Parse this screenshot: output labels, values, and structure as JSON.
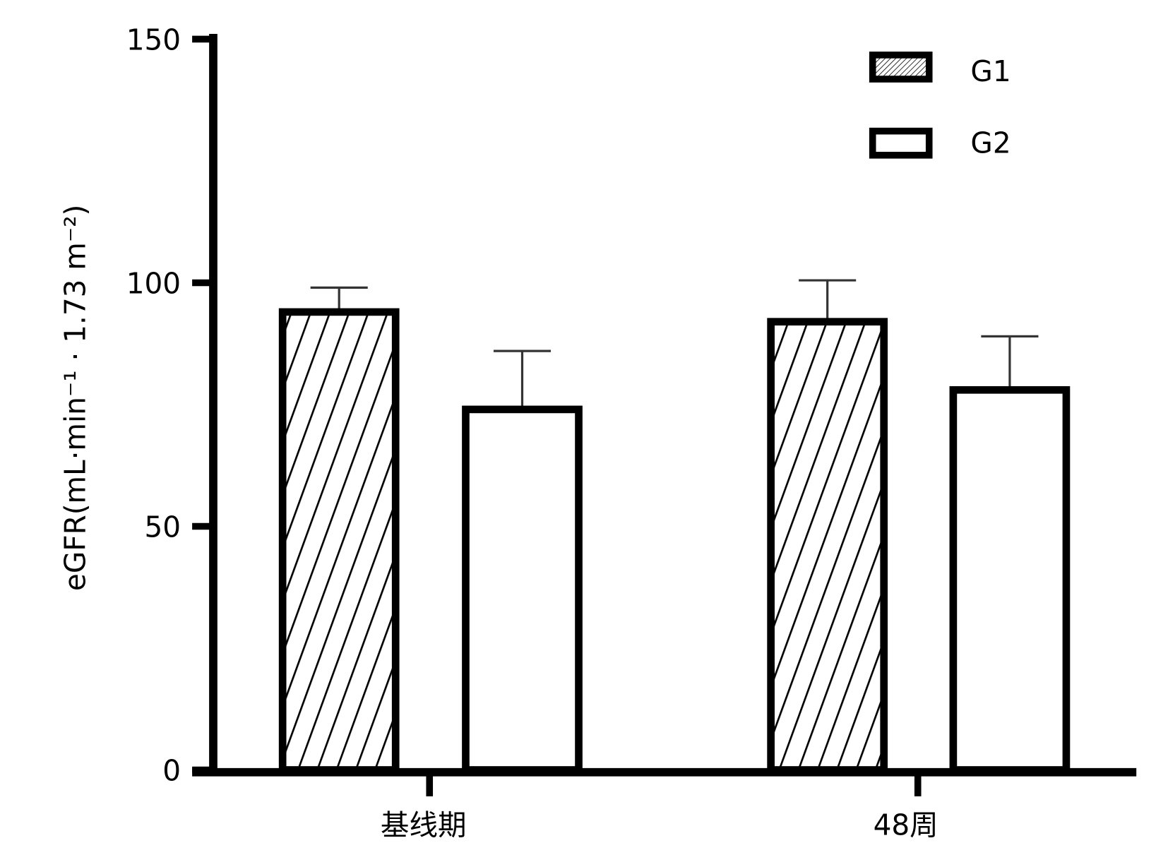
{
  "chart_data": {
    "type": "bar",
    "title": "",
    "xlabel": "",
    "ylabel": "eGFR(mL·min⁻¹ · 1.73 m⁻²)",
    "ylim": [
      0,
      150
    ],
    "yticks": [
      "0",
      "50",
      "100",
      "150"
    ],
    "categories": [
      "基线期",
      "48周"
    ],
    "series": [
      {
        "name": "G1",
        "pattern": "hatched",
        "values": [
          94,
          92
        ],
        "error_upper": [
          99,
          100.5
        ]
      },
      {
        "name": "G2",
        "pattern": "open",
        "values": [
          74,
          78
        ],
        "error_upper": [
          86,
          89
        ]
      }
    ],
    "legend": "top-right",
    "grid": false,
    "colors": {
      "stroke": "#000000",
      "fill": "#ffffff"
    }
  }
}
